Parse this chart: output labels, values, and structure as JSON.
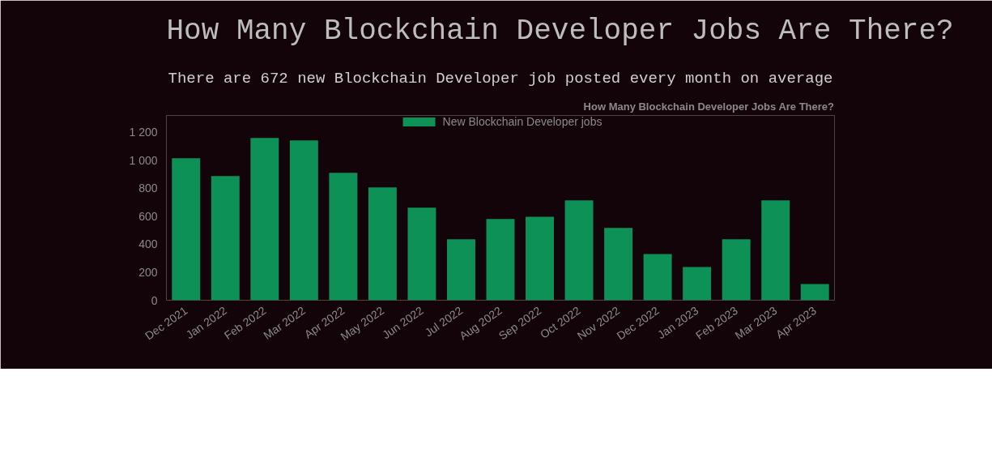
{
  "chart_data": {
    "type": "bar",
    "title": "How Many Blockchain Developer Jobs Are There?",
    "subtitle": "There are 672 new Blockchain Developer job posted every month on average",
    "annotations": [
      "How Many Blockchain Developer Jobs Are There?"
    ],
    "categories": [
      "Dec 2021",
      "Jan 2022",
      "Feb 2022",
      "Mar 2022",
      "Apr 2022",
      "May 2022",
      "Jun 2022",
      "Jul 2022",
      "Aug 2022",
      "Sep 2022",
      "Oct 2022",
      "Nov 2022",
      "Dec 2022",
      "Jan 2023",
      "Feb 2023",
      "Mar 2023",
      "Apr 2023"
    ],
    "series": [
      {
        "name": "New Blockchain Developer jobs",
        "color": "#0e9157",
        "values": [
          1015,
          887,
          1159,
          1142,
          910,
          806,
          661,
          435,
          580,
          597,
          713,
          516,
          330,
          238,
          435,
          713,
          116
        ]
      }
    ],
    "ylim": [
      0,
      1320
    ],
    "yticks": [
      {
        "value": 0,
        "label": "0"
      },
      {
        "value": 200,
        "label": "200"
      },
      {
        "value": 400,
        "label": "400"
      },
      {
        "value": 600,
        "label": "600"
      },
      {
        "value": 800,
        "label": "800"
      },
      {
        "value": 1000,
        "label": "1 000"
      },
      {
        "value": 1200,
        "label": "1 200"
      }
    ],
    "grid": false,
    "legend": "top"
  }
}
